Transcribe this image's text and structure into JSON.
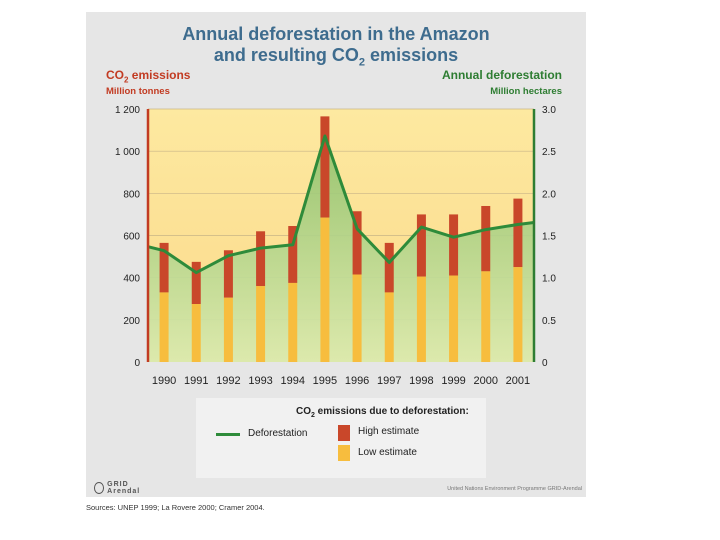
{
  "title": {
    "line1": "Annual deforestation in the Amazon",
    "line2_pre": "and resulting CO",
    "line2_sub": "2",
    "line2_post": " emissions"
  },
  "left_axis": {
    "title_pre": "CO",
    "title_sub": "2",
    "title_post": " emissions",
    "unit": "Million tonnes",
    "color": "#c23b22"
  },
  "right_axis": {
    "title": "Annual deforestation",
    "unit": "Million hectares",
    "color": "#2e7d32"
  },
  "chart_data": {
    "type": "bar",
    "categories": [
      "1990",
      "1991",
      "1992",
      "1993",
      "1994",
      "1995",
      "1996",
      "1997",
      "1998",
      "1999",
      "2000",
      "2001"
    ],
    "series": [
      {
        "name": "Low estimate",
        "axis": "left",
        "values": [
          330,
          275,
          305,
          360,
          375,
          685,
          415,
          330,
          405,
          410,
          430,
          450
        ],
        "color": "#f7bd3e"
      },
      {
        "name": "High estimate",
        "axis": "left",
        "values": [
          565,
          475,
          530,
          620,
          645,
          1165,
          715,
          565,
          700,
          700,
          740,
          775
        ],
        "color": "#c9472a"
      },
      {
        "name": "Deforestation",
        "axis": "right",
        "type": "line",
        "values": [
          1.32,
          1.06,
          1.26,
          1.35,
          1.39,
          2.68,
          1.58,
          1.18,
          1.6,
          1.48,
          1.57,
          1.63
        ],
        "color": "#2e8b3a"
      }
    ],
    "left_ylim": [
      0,
      1200
    ],
    "left_ticks": [
      "0",
      "200",
      "400",
      "600",
      "800",
      "1 000",
      "1 200"
    ],
    "left_tick_values": [
      0,
      200,
      400,
      600,
      800,
      1000,
      1200
    ],
    "right_ylim": [
      0,
      3.0
    ],
    "right_ticks": [
      "0",
      "0.5",
      "1.0",
      "1.5",
      "2.0",
      "2.5",
      "3.0"
    ],
    "right_tick_values": [
      0,
      0.5,
      1.0,
      1.5,
      2.0,
      2.5,
      3.0
    ]
  },
  "legend": {
    "title_pre": "CO",
    "title_sub": "2",
    "title_post": " emissions due to deforestation:",
    "line_label": "Deforestation",
    "high_label": "High estimate",
    "low_label": "Low estimate"
  },
  "footer": {
    "logo_text": "GRID Arendal",
    "credit": "United Nations Environment Programme GRID-Arendal"
  },
  "sources": "Sources: UNEP 1999; La Rovere 2000; Cramer 2004."
}
